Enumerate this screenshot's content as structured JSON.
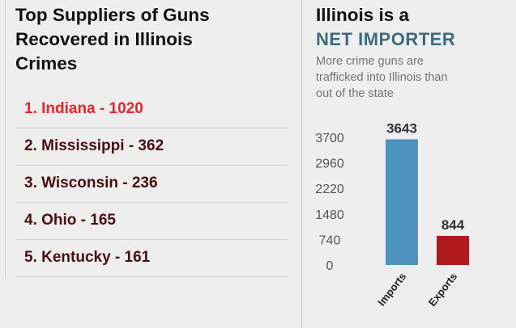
{
  "left": {
    "title_line1": "Top Suppliers of Guns",
    "title_line2": "Recovered in Illinois",
    "title_line3": "Crimes",
    "suppliers": [
      {
        "rank": 1,
        "state": "Indiana",
        "count": 1020,
        "text": "1. Indiana - 1020"
      },
      {
        "rank": 2,
        "state": "Mississippi",
        "count": 362,
        "text": "2. Mississippi - 362"
      },
      {
        "rank": 3,
        "state": "Wisconsin",
        "count": 236,
        "text": "3. Wisconsin - 236"
      },
      {
        "rank": 4,
        "state": "Ohio",
        "count": 165,
        "text": "4. Ohio - 165"
      },
      {
        "rank": 5,
        "state": "Kentucky",
        "count": 161,
        "text": "5. Kentucky - 161"
      }
    ]
  },
  "right": {
    "title": "Illinois is a",
    "subtitle": "NET IMPORTER",
    "caption_line1": "More crime guns are",
    "caption_line2": "trafficked into Illinois than",
    "caption_line3": "out of the state"
  },
  "colors": {
    "highlight": "#e3252a",
    "list_text": "#4a0d10",
    "subtitle": "#3e6b7e",
    "imports_bar": "#4d93bd",
    "exports_bar": "#b0191d"
  },
  "chart_data": {
    "type": "bar",
    "categories": [
      "Imports",
      "Exports"
    ],
    "values": [
      3643,
      844
    ],
    "value_labels": [
      "3643",
      "844"
    ],
    "bar_colors": [
      "#4d93bd",
      "#b0191d"
    ],
    "yticks": [
      0,
      740,
      1480,
      2220,
      2960,
      3700
    ],
    "ylim": [
      0,
      3700
    ],
    "title": "",
    "xlabel": "",
    "ylabel": "",
    "grid": false
  }
}
